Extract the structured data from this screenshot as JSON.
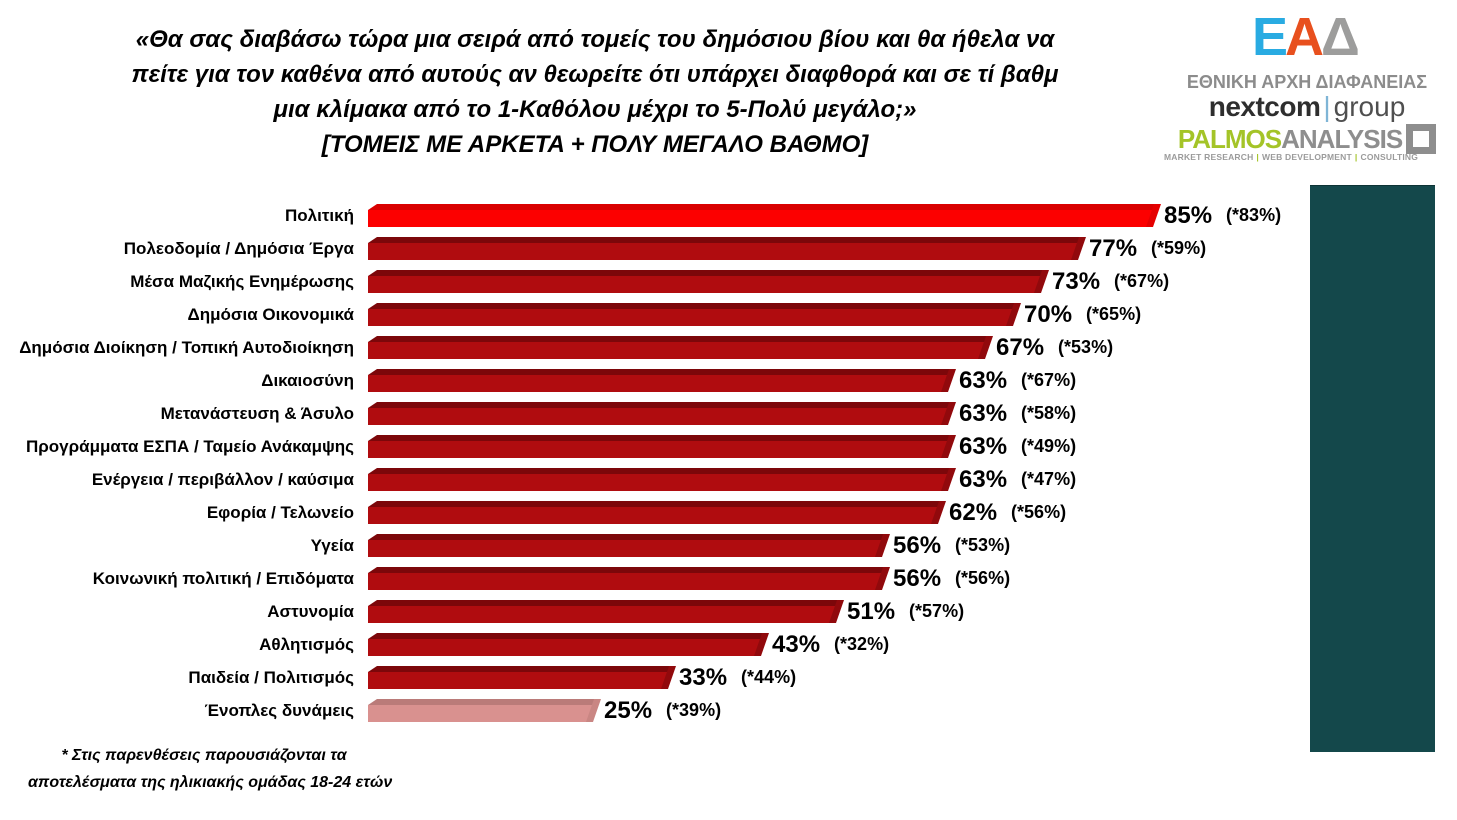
{
  "slide": {
    "title_lines": [
      "«Θα σας διαβάσω τώρα μια σειρά από τομείς του δημόσιου βίου και θα ήθελα να",
      "πείτε για τον καθένα από αυτούς αν θεωρείτε ότι υπάρχει διαφθορά και σε τί βαθμ",
      "μια κλίμακα από το 1-Καθόλου μέχρι το 5-Πολύ μεγάλο;»",
      "[ΤΟΜΕΙΣ ΜΕ ΑΡΚΕΤΑ + ΠΟΛΥ ΜΕΓΑΛΟ ΒΑΘΜΟ]"
    ],
    "footnote_lines": [
      "* Στις παρενθέσεις παρουσιάζονται τα",
      "αποτελέσματα της ηλικιακής ομάδας 18-24 ετών"
    ]
  },
  "logos": {
    "ead": {
      "mark_letters": [
        {
          "char": "Ε",
          "color": "#29abe2"
        },
        {
          "char": "Α",
          "color": "#e8501e"
        },
        {
          "char": "Δ",
          "color": "#9d9d9c"
        }
      ],
      "caption": "ΕΘΝΙΚΗ ΑΡΧΗ ΔΙΑΦΑΝΕΙΑΣ"
    },
    "nextcom": {
      "name": "nextcom",
      "divider": "|",
      "suffix": "group"
    },
    "palmos": {
      "primary": "PALMOS",
      "secondary": "ANALYSIS",
      "tagline_segments": [
        "MARKET RESEARCH",
        "WEB DEVELOPMENT",
        "CONSULTING"
      ],
      "tagline_separator": "|"
    }
  },
  "chart_data": {
    "type": "bar",
    "orientation": "horizontal",
    "title": "[ΤΟΜΕΙΣ ΜΕ ΑΡΚΕΤΑ + ΠΟΛΥ ΜΕΓΑΛΟ ΒΑΘΜΟ]",
    "value_suffix": "%",
    "xlim": [
      0,
      100
    ],
    "grid": false,
    "legend": false,
    "categories": [
      "Πολιτική",
      "Πολεοδομία / Δημόσια Έργα",
      "Μέσα Μαζικής Ενημέρωσης",
      "Δημόσια Οικονομικά",
      "Δημόσια Διοίκηση / Τοπική Αυτοδιοίκηση",
      "Δικαιοσύνη",
      "Μετανάστευση & Άσυλο",
      "Προγράμματα ΕΣΠΑ / Ταμείο Ανάκαμψης",
      "Ενέργεια / περιβάλλον / καύσιμα",
      "Εφορία / Τελωνείο",
      "Υγεία",
      "Κοινωνική πολιτική / Επιδόματα",
      "Αστυνομία",
      "Αθλητισμός",
      "Παιδεία / Πολιτισμός",
      "Ένοπλες δυνάμεις"
    ],
    "values": [
      85,
      77,
      73,
      70,
      67,
      63,
      63,
      63,
      63,
      62,
      56,
      56,
      51,
      43,
      33,
      25
    ],
    "secondary_series_name": "18-24 ετών",
    "secondary_values": [
      83,
      59,
      67,
      65,
      53,
      67,
      58,
      49,
      47,
      56,
      53,
      56,
      57,
      32,
      44,
      39
    ],
    "secondary_format": "(*{v}%)",
    "bar_themes": [
      "bright",
      "dark",
      "dark",
      "dark",
      "dark",
      "dark",
      "dark",
      "dark",
      "dark",
      "dark",
      "dark",
      "dark",
      "dark",
      "dark",
      "dark",
      "pink"
    ],
    "themes": {
      "bright": {
        "main": "#fc0000",
        "top": "#d90000",
        "cap": "#e50000"
      },
      "dark": {
        "main": "#b00c0f",
        "top": "#7c070a",
        "cap": "#91090c"
      },
      "pink": {
        "main": "#d9918f",
        "top": "#ba7b79",
        "cap": "#c98683"
      }
    }
  },
  "decor": {
    "side_panel_color": "#14484b"
  }
}
